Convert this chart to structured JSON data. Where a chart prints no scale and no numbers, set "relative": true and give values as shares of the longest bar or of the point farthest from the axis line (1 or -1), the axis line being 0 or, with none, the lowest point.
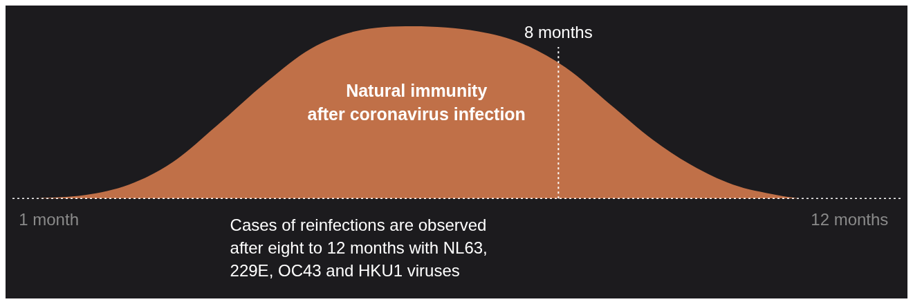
{
  "chart_data": {
    "type": "area",
    "relative": true,
    "x": [
      0.8,
      1.5,
      2.1,
      2.7,
      3.3,
      4.0,
      4.6,
      5.2,
      6.0,
      6.9,
      7.5,
      8.1,
      8.7,
      9.3,
      9.8,
      10.4,
      11.0,
      11.3
    ],
    "series": [
      {
        "color": "#c07048",
        "values": [
          0,
          0.02,
          0.08,
          0.21,
          0.42,
          0.68,
          0.87,
          0.97,
          1,
          0.97,
          0.9,
          0.76,
          0.55,
          0.34,
          0.2,
          0.08,
          0.02,
          0
        ]
      }
    ],
    "xlim": [
      0.5,
      12.7
    ],
    "xticks": [
      {
        "value": 1,
        "label": "1 month"
      },
      {
        "value": 12,
        "label": "12 months"
      }
    ],
    "ref_lines": [
      {
        "axis": "x",
        "value": 8,
        "label": "8 months",
        "line_style": "dotted",
        "color": "#ffffff"
      }
    ],
    "annotations": [
      "Natural immunity\nafter coronavirus infection",
      "Cases of reinfections are observed\nafter eight to 12 months with NL63,\n229E, OC43 and HKU1 viruses"
    ],
    "legend": false
  }
}
